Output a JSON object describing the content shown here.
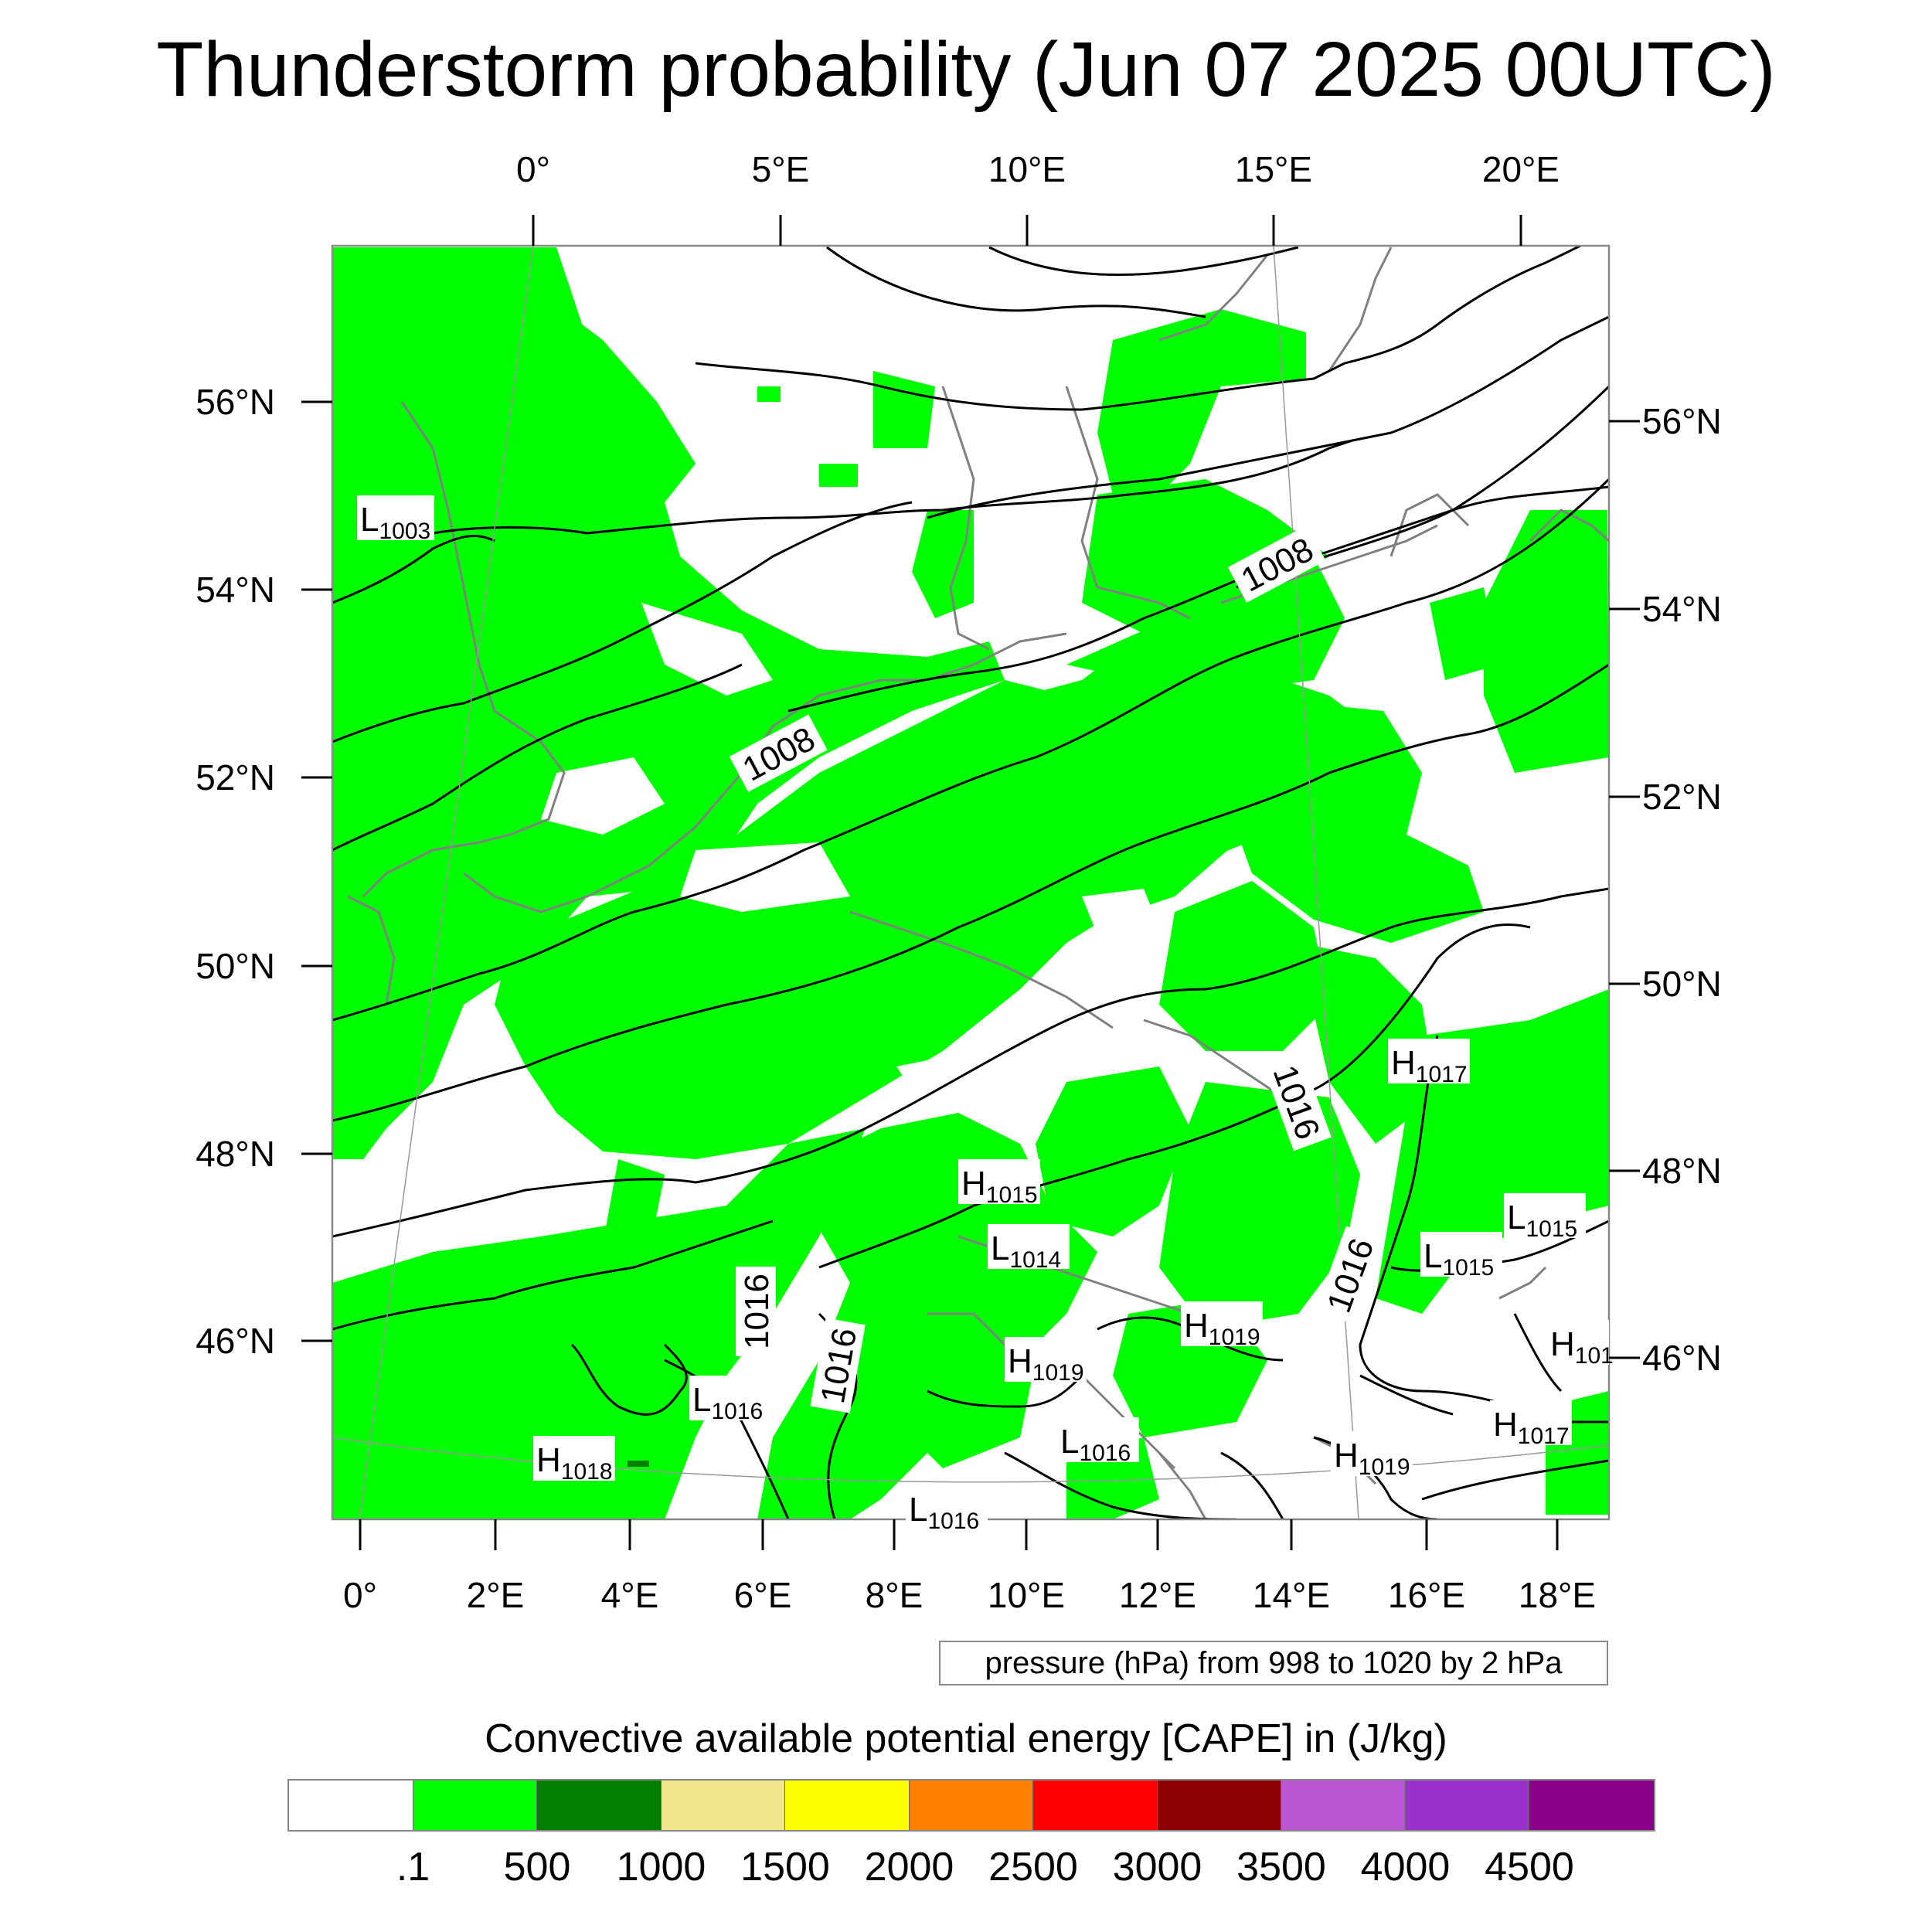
{
  "title": "Thunderstorm probability (Jun 07 2025 00UTC)",
  "top_lon_labels": [
    "0°",
    "5°E",
    "10°E",
    "15°E",
    "20°E"
  ],
  "bottom_lon_labels": [
    "0°",
    "2°E",
    "4°E",
    "6°E",
    "8°E",
    "10°E",
    "12°E",
    "14°E",
    "16°E",
    "18°E"
  ],
  "left_lat_labels": [
    "56°N",
    "54°N",
    "52°N",
    "50°N",
    "48°N",
    "46°N"
  ],
  "right_lat_labels": [
    "56°N",
    "54°N",
    "52°N",
    "50°N",
    "48°N",
    "46°N"
  ],
  "pressure_centers": [
    {
      "letter": "L",
      "value": "1003"
    },
    {
      "letter": "H",
      "value": "1017"
    },
    {
      "letter": "H",
      "value": "1015"
    },
    {
      "letter": "L",
      "value": "1015"
    },
    {
      "letter": "L",
      "value": "1014"
    },
    {
      "letter": "L",
      "value": "1015"
    },
    {
      "letter": "H",
      "value": "1019"
    },
    {
      "letter": "H",
      "value": "1019"
    },
    {
      "letter": "H",
      "value": "101"
    },
    {
      "letter": "L",
      "value": "1016"
    },
    {
      "letter": "H",
      "value": "1017"
    },
    {
      "letter": "L",
      "value": "1016"
    },
    {
      "letter": "H",
      "value": "1019"
    },
    {
      "letter": "H",
      "value": "1018"
    },
    {
      "letter": "L",
      "value": "1016"
    }
  ],
  "contour_labels": [
    "1008",
    "1008",
    "1016",
    "1016",
    "1016",
    "1016"
  ],
  "pressure_note": "pressure (hPa) from 998 to 1020 by 2 hPa",
  "colorbar": {
    "title": "Convective available potential energy [CAPE] in (J/kg)",
    "colors": [
      "#ffffff",
      "#00ff00",
      "#007f00",
      "#f0e68c",
      "#ffff00",
      "#ff8000",
      "#ff0000",
      "#8b0000",
      "#ba55d3",
      "#9932cc",
      "#8b008b"
    ],
    "labels": [
      ".1",
      "500",
      "1000",
      "1500",
      "2000",
      "2500",
      "3000",
      "3500",
      "4000",
      "4500"
    ]
  }
}
